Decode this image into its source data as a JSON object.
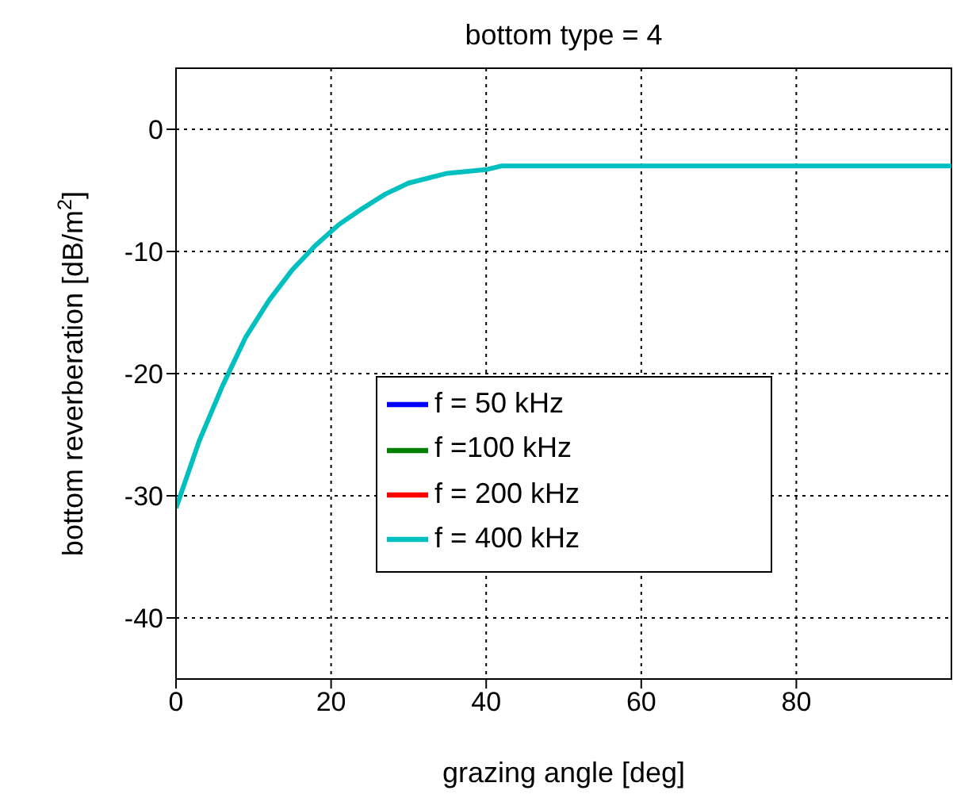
{
  "chart_data": {
    "type": "line",
    "title": "bottom type = 4",
    "xlabel": "grazing angle [deg]",
    "ylabel": "bottom reverberation [dB/m$^{2}$]",
    "x": [
      0,
      3,
      6,
      9,
      12,
      15,
      18,
      21,
      24,
      27,
      30,
      35,
      40,
      42,
      50,
      60,
      70,
      80,
      90,
      100
    ],
    "series": [
      {
        "name": "f = 50 kHz",
        "color": "#0000ff",
        "values": [
          null,
          null,
          null,
          null,
          null,
          null,
          null,
          null,
          null,
          null,
          null,
          null,
          null,
          null,
          null,
          null,
          null,
          null,
          null,
          null
        ]
      },
      {
        "name": "f =100 kHz",
        "color": "#008000",
        "values": [
          null,
          null,
          null,
          null,
          null,
          null,
          null,
          null,
          null,
          null,
          null,
          null,
          null,
          null,
          null,
          null,
          null,
          null,
          null,
          null
        ]
      },
      {
        "name": "f = 200 kHz",
        "color": "#ff0000",
        "values": [
          null,
          null,
          null,
          null,
          null,
          null,
          null,
          null,
          null,
          null,
          null,
          null,
          null,
          null,
          null,
          null,
          null,
          null,
          null,
          null
        ]
      },
      {
        "name": "f = 400 kHz",
        "color": "#00bfbf",
        "values": [
          -31,
          -25.5,
          -21,
          -17,
          -14,
          -11.5,
          -9.5,
          -7.8,
          -6.5,
          -5.3,
          -4.4,
          -3.6,
          -3.3,
          -3,
          -3,
          -3,
          -3,
          -3,
          -3,
          -3
        ]
      }
    ],
    "xlim": [
      0,
      100
    ],
    "xticks": [
      0,
      20,
      40,
      60,
      80
    ],
    "ylim": [
      -45,
      5
    ],
    "yticks": [
      -40,
      -30,
      -20,
      -10,
      0
    ],
    "grid": true,
    "legend": "bottom",
    "line_style": "solid",
    "marker": "none"
  }
}
